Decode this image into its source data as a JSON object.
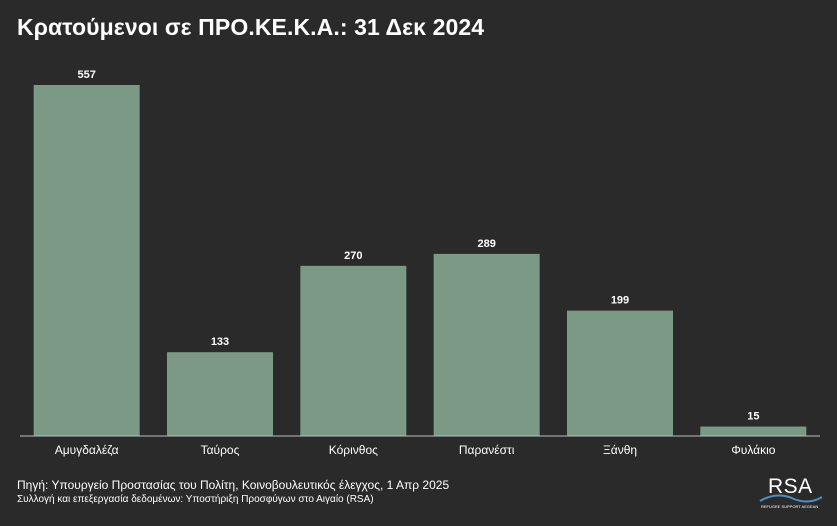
{
  "title": "Κρατούμενοι σε ΠΡΟ.ΚΕ.Κ.Α.: 31 Δεκ 2024",
  "footer": {
    "source": "Πηγή: Υπουργείο Προστασίας του Πολίτη, Κοινοβουλευτικός έλεγχος, 1 Απρ 2025",
    "credit": "Συλλογή και επεξεργασία δεδομένων: Υποστήριξη Προσφύγων στο Αιγαίο (RSA)"
  },
  "logo": {
    "text": "RSA",
    "subtitle": "REFUGEE SUPPORT AEGEAN"
  },
  "colors": {
    "background": "#2a2a2a",
    "bar": "#7a9a86",
    "text": "#ffffff",
    "baseline": "#bcbcbc",
    "logo_wave": "#4a8fc4"
  },
  "chart_data": {
    "type": "bar",
    "title": "Κρατούμενοι σε ΠΡΟ.ΚΕ.Κ.Α.: 31 Δεκ 2024",
    "categories": [
      "Αμυγδαλέζα",
      "Ταύρος",
      "Κόρινθος",
      "Παρανέστι",
      "Ξάνθη",
      "Φυλάκιο"
    ],
    "values": [
      557,
      133,
      270,
      289,
      199,
      15
    ],
    "ylim": [
      0,
      557
    ],
    "grid": false,
    "legend": "none",
    "data_labels": true,
    "xlabel": "",
    "ylabel": ""
  }
}
